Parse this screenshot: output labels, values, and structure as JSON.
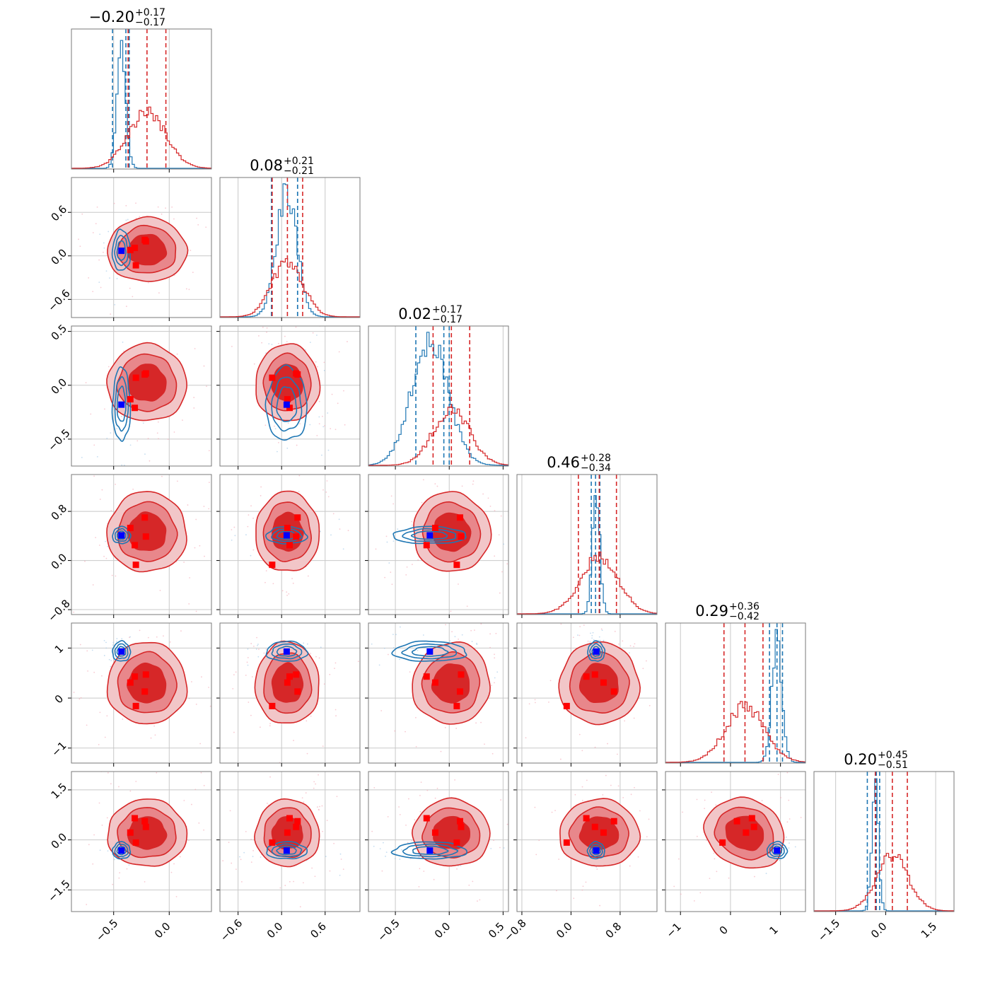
{
  "colors": {
    "series_a": "#1f77b4",
    "series_b": "#d62728",
    "marker_a": "#0000ff",
    "marker_b": "#ff0000",
    "grid": "#c8c8c8",
    "frame": "#7a7a7a"
  },
  "chart_data": {
    "type": "corner",
    "grid": true,
    "n_params": 6,
    "ranges": [
      [
        -0.88,
        0.38
      ],
      [
        -0.85,
        1.08
      ],
      [
        -0.75,
        0.55
      ],
      [
        -0.88,
        1.4
      ],
      [
        -1.3,
        1.5
      ],
      [
        -2.15,
        2.05
      ]
    ],
    "tick_values": [
      [
        -0.5,
        0.0
      ],
      [
        -0.6,
        0.0,
        0.6
      ],
      [
        -0.5,
        0.0,
        0.5
      ],
      [
        -0.8,
        0.0,
        0.8
      ],
      [
        -1,
        0,
        1
      ],
      [
        -1.5,
        0.0,
        1.5
      ]
    ],
    "tick_labels": [
      [
        "−0.5",
        "0.0"
      ],
      [
        "−0.6",
        "0.0",
        "0.6"
      ],
      [
        "−0.5",
        "0.0",
        "0.5"
      ],
      [
        "−0.8",
        "0.0",
        "0.8"
      ],
      [
        "−1",
        "0",
        "1"
      ],
      [
        "−1.5",
        "0.0",
        "1.5"
      ]
    ],
    "titles": [
      {
        "main": "−0.20",
        "sup": "+0.17",
        "sub": "−0.17"
      },
      {
        "main": "0.08",
        "sup": "+0.21",
        "sub": "−0.21"
      },
      {
        "main": "0.02",
        "sup": "+0.17",
        "sub": "−0.17"
      },
      {
        "main": "0.46",
        "sup": "+0.28",
        "sub": "−0.34"
      },
      {
        "main": "0.29",
        "sup": "+0.36",
        "sub": "−0.42"
      },
      {
        "main": "0.20",
        "sup": "+0.45",
        "sub": "−0.51"
      }
    ],
    "series": [
      {
        "key": "a",
        "center": [
          -0.43,
          0.07,
          -0.18,
          0.41,
          0.93,
          -0.32
        ],
        "sigma": [
          0.04,
          0.14,
          0.17,
          0.06,
          0.1,
          0.1
        ],
        "quantiles": [
          [
            -0.51,
            -0.39,
            -0.36
          ],
          [
            -0.14,
            0.22,
            0.22
          ],
          [
            -0.31,
            -0.05,
            0.0
          ],
          [
            0.33,
            0.4,
            0.47
          ],
          [
            0.78,
            0.93,
            1.04
          ],
          [
            -0.55,
            -0.28,
            -0.18
          ]
        ]
      },
      {
        "key": "b",
        "center": [
          -0.2,
          0.08,
          0.02,
          0.46,
          0.29,
          0.2
        ],
        "sigma": [
          0.17,
          0.21,
          0.17,
          0.31,
          0.39,
          0.48
        ],
        "quantiles": [
          [
            -0.37,
            -0.2,
            -0.03
          ],
          [
            -0.13,
            0.08,
            0.29
          ],
          [
            -0.15,
            0.02,
            0.19
          ],
          [
            0.12,
            0.46,
            0.74
          ],
          [
            -0.13,
            0.29,
            0.65
          ],
          [
            -0.31,
            0.2,
            0.65
          ]
        ]
      }
    ],
    "markers": {
      "blue": [
        -0.43,
        0.07,
        -0.18,
        0.41,
        0.93,
        -0.32
      ],
      "red": [
        [
          -0.35,
          0.08,
          -0.13,
          0.53,
          0.31,
          0.22
        ],
        [
          -0.21,
          0.2,
          0.11,
          0.39,
          0.47,
          0.39
        ],
        [
          -0.31,
          0.11,
          -0.21,
          0.25,
          0.43,
          0.65
        ],
        [
          -0.3,
          -0.13,
          0.07,
          -0.07,
          -0.16,
          -0.08
        ],
        [
          -0.22,
          0.22,
          0.1,
          0.7,
          0.13,
          0.56
        ]
      ]
    }
  }
}
